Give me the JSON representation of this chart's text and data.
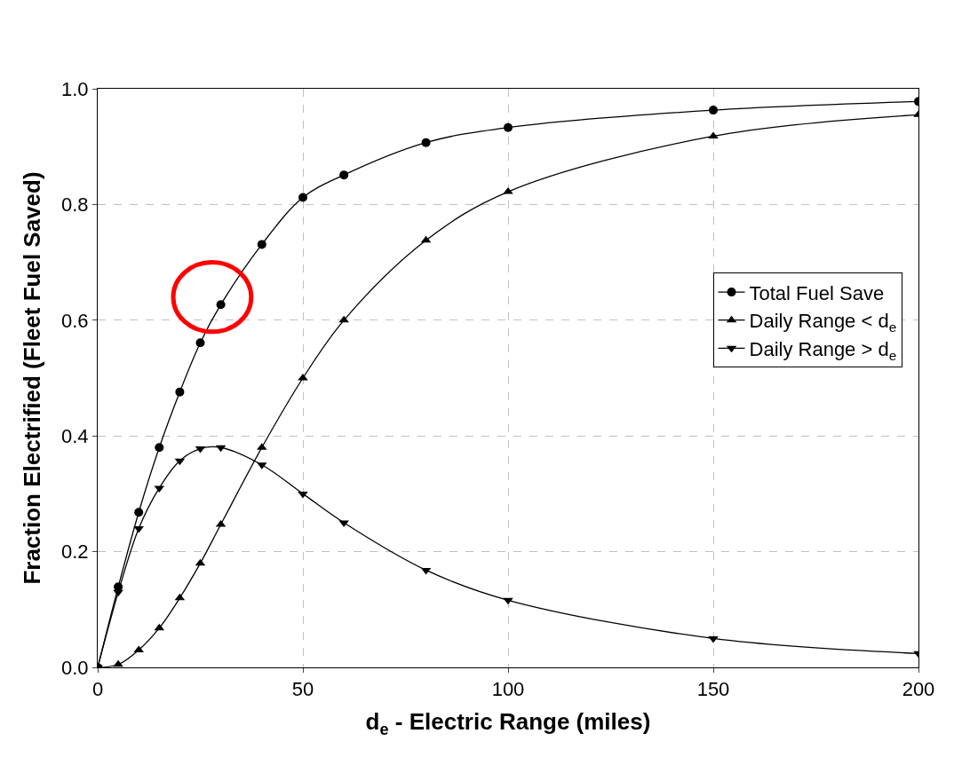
{
  "chart_data": {
    "type": "line",
    "xlabel": "d$_{e}$ - Electric Range (miles)",
    "ylabel": "Fraction Electrified (Fleet Fuel Saved)",
    "x": [
      0,
      5,
      10,
      15,
      20,
      25,
      30,
      40,
      50,
      60,
      80,
      100,
      150,
      200
    ],
    "series": [
      {
        "name": "Total Fuel Save",
        "color": "#000000",
        "marker": "circle",
        "values": [
          0,
          0.139,
          0.268,
          0.38,
          0.476,
          0.561,
          0.627,
          0.731,
          0.812,
          0.851,
          0.907,
          0.933,
          0.963,
          0.978
        ]
      },
      {
        "name": "Daily Range < d$_{e}$",
        "color": "#000000",
        "marker": "triangle",
        "values": [
          0,
          0.005,
          0.03,
          0.068,
          0.12,
          0.18,
          0.247,
          0.38,
          0.5,
          0.6,
          0.738,
          0.822,
          0.918,
          0.955
        ]
      },
      {
        "name": "Daily Range > d$_{e}$",
        "color": "#000000",
        "marker": "triangle-down",
        "values": [
          0,
          0.13,
          0.24,
          0.31,
          0.357,
          0.378,
          0.38,
          0.35,
          0.3,
          0.25,
          0.168,
          0.116,
          0.05,
          0.024
        ]
      }
    ],
    "xlim": [
      0,
      200
    ],
    "xticks": [
      0,
      50,
      100,
      150,
      200
    ],
    "ylim": [
      0,
      1.0
    ],
    "yticks": [
      {
        "value": 0,
        "label": "0.0"
      },
      0.2,
      0.4,
      0.6,
      0.8,
      {
        "value": 1.0,
        "label": "1.0"
      }
    ],
    "grid": true,
    "legend": "right",
    "line_style": "solid"
  }
}
